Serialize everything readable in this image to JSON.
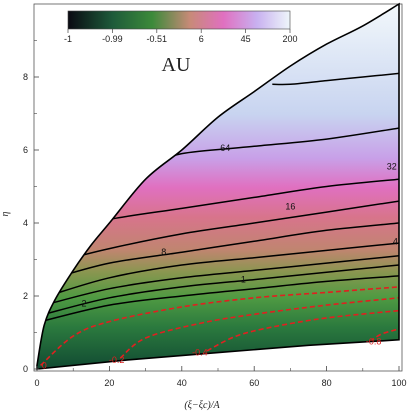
{
  "chart_data": {
    "type": "contour",
    "title": "AU",
    "xlabel": "(ξ−ξc)/A",
    "ylabel": "η",
    "xlim": [
      0,
      100
    ],
    "ylim": [
      0,
      10
    ],
    "x_ticks": [
      "0",
      "20",
      "40",
      "60",
      "80",
      "100"
    ],
    "y_ticks": [
      "0",
      "2",
      "4",
      "6",
      "8"
    ],
    "colorbar": {
      "tick_labels": [
        "-1",
        "-0.99",
        "-0.51",
        "6",
        "45",
        "200"
      ],
      "colors": [
        "#0a0a12",
        "#1e5a3a",
        "#3c8a3a",
        "#c88a78",
        "#e070c0",
        "#c8b0f0",
        "#eef6fa"
      ]
    },
    "domain": {
      "upper_boundary": [
        [
          0,
          0.1
        ],
        [
          2,
          1.2
        ],
        [
          5,
          1.9
        ],
        [
          10,
          2.7
        ],
        [
          15,
          3.4
        ],
        [
          20,
          4.0
        ],
        [
          30,
          5.2
        ],
        [
          40,
          6.0
        ],
        [
          50,
          6.9
        ],
        [
          60,
          7.6
        ],
        [
          70,
          8.3
        ],
        [
          80,
          8.9
        ],
        [
          90,
          9.4
        ],
        [
          100,
          10.0
        ]
      ],
      "lower_boundary": [
        [
          0,
          0.0
        ],
        [
          25,
          0.25
        ],
        [
          50,
          0.45
        ],
        [
          75,
          0.65
        ],
        [
          100,
          0.8
        ]
      ]
    },
    "black_contours": [
      {
        "level": "64",
        "points": [
          [
            32,
            5.6
          ],
          [
            40,
            5.9
          ],
          [
            60,
            6.1
          ],
          [
            80,
            6.3
          ],
          [
            100,
            6.6
          ]
        ]
      },
      {
        "level": "",
        "points": [
          [
            65,
            7.8
          ],
          [
            70,
            7.8
          ],
          [
            80,
            7.9
          ],
          [
            90,
            8.0
          ],
          [
            100,
            8.1
          ]
        ]
      },
      {
        "level": "32",
        "points": [
          [
            15,
            3.9
          ],
          [
            20,
            4.1
          ],
          [
            40,
            4.4
          ],
          [
            60,
            4.7
          ],
          [
            80,
            5.0
          ],
          [
            100,
            5.2
          ]
        ]
      },
      {
        "level": "16",
        "points": [
          [
            8,
            3.0
          ],
          [
            20,
            3.3
          ],
          [
            40,
            3.7
          ],
          [
            60,
            4.0
          ],
          [
            80,
            4.3
          ],
          [
            100,
            4.6
          ]
        ]
      },
      {
        "level": "8",
        "points": [
          [
            5,
            2.5
          ],
          [
            20,
            2.9
          ],
          [
            40,
            3.2
          ],
          [
            60,
            3.5
          ],
          [
            80,
            3.8
          ],
          [
            100,
            4.0
          ]
        ]
      },
      {
        "level": "4",
        "points": [
          [
            3,
            2.0
          ],
          [
            20,
            2.5
          ],
          [
            40,
            2.85
          ],
          [
            60,
            3.05
          ],
          [
            80,
            3.25
          ],
          [
            100,
            3.45
          ]
        ]
      },
      {
        "level": "",
        "points": [
          [
            2,
            1.75
          ],
          [
            20,
            2.2
          ],
          [
            40,
            2.5
          ],
          [
            60,
            2.7
          ],
          [
            80,
            2.9
          ],
          [
            100,
            3.1
          ]
        ]
      },
      {
        "level": "1",
        "points": [
          [
            2,
            1.5
          ],
          [
            20,
            1.95
          ],
          [
            40,
            2.25
          ],
          [
            60,
            2.45
          ],
          [
            80,
            2.65
          ],
          [
            100,
            2.85
          ]
        ]
      },
      {
        "level": "2",
        "points": [
          [
            1,
            1.3
          ],
          [
            20,
            1.75
          ],
          [
            40,
            2.0
          ],
          [
            60,
            2.2
          ],
          [
            80,
            2.4
          ],
          [
            100,
            2.55
          ]
        ]
      }
    ],
    "red_contours": [
      {
        "level": "0",
        "points": [
          [
            1,
            0.1
          ],
          [
            10,
            0.9
          ],
          [
            20,
            1.3
          ],
          [
            40,
            1.7
          ],
          [
            60,
            1.95
          ],
          [
            80,
            2.1
          ],
          [
            100,
            2.25
          ]
        ]
      },
      {
        "level": "-0.2",
        "points": [
          [
            23,
            0.3
          ],
          [
            30,
            0.85
          ],
          [
            45,
            1.25
          ],
          [
            60,
            1.5
          ],
          [
            80,
            1.75
          ],
          [
            100,
            1.95
          ]
        ]
      },
      {
        "level": "-0.4",
        "points": [
          [
            47,
            0.5
          ],
          [
            55,
            0.9
          ],
          [
            65,
            1.15
          ],
          [
            80,
            1.4
          ],
          [
            100,
            1.6
          ]
        ]
      },
      {
        "level": "-0.8",
        "points": [
          [
            92,
            0.75
          ],
          [
            95,
            0.95
          ],
          [
            100,
            1.1
          ]
        ]
      }
    ],
    "black_label_positions": [
      {
        "text": "64",
        "x": 52,
        "y": 6.05
      },
      {
        "text": "32",
        "x": 98,
        "y": 5.55
      },
      {
        "text": "16",
        "x": 70,
        "y": 4.45
      },
      {
        "text": "8",
        "x": 35,
        "y": 3.2
      },
      {
        "text": "4",
        "x": 99,
        "y": 3.5
      },
      {
        "text": "2",
        "x": 13,
        "y": 1.8
      },
      {
        "text": "1",
        "x": 57,
        "y": 2.45
      }
    ],
    "red_label_positions": [
      {
        "text": "0",
        "x": 2,
        "y": 0.1
      },
      {
        "text": "-0.2",
        "x": 22,
        "y": 0.25
      },
      {
        "text": "-0.4",
        "x": 45,
        "y": 0.45
      },
      {
        "text": "-0.8",
        "x": 93,
        "y": 0.75
      }
    ]
  }
}
